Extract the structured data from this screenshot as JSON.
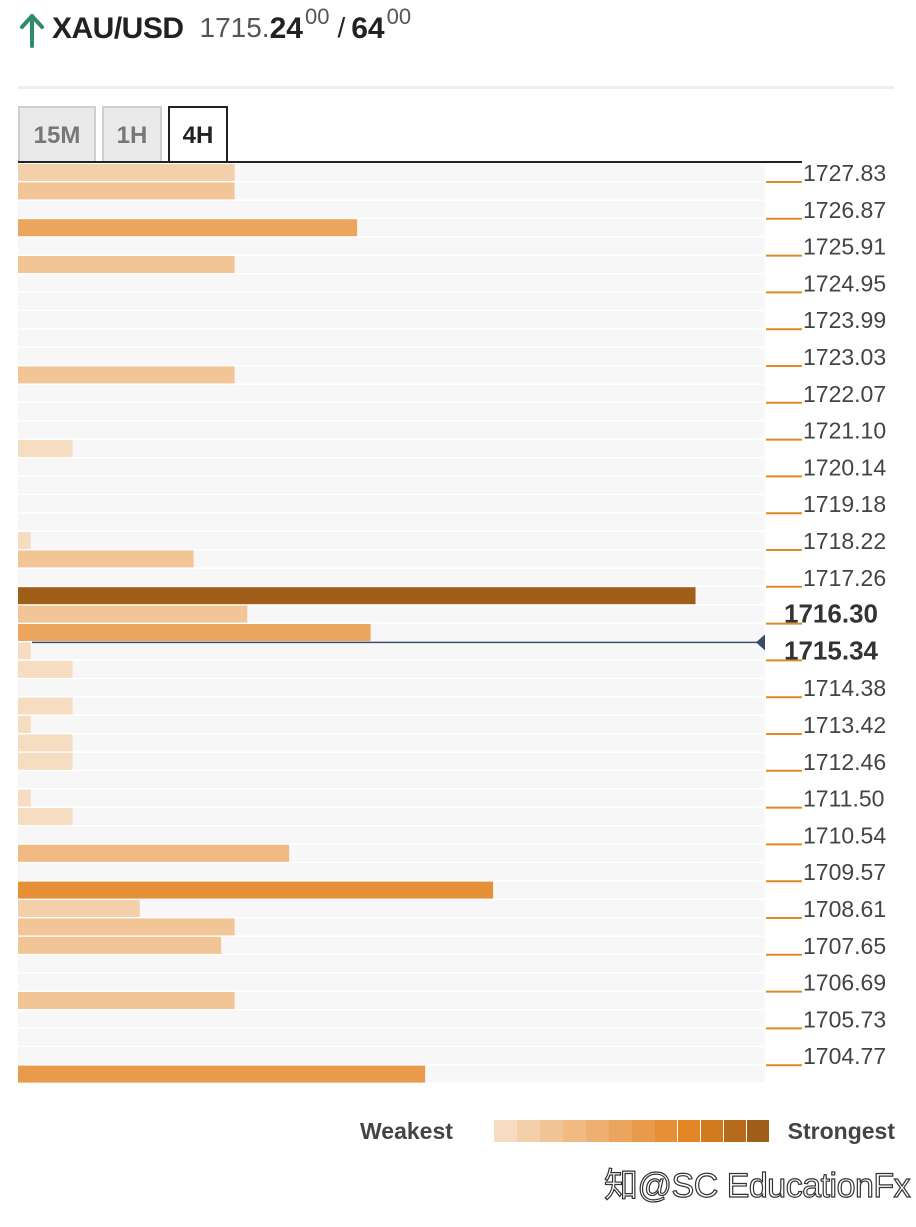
{
  "header": {
    "symbol": "XAU/USD",
    "price_prefix": "1715.",
    "bid_big": "24",
    "bid_sup": "00",
    "separator": "/",
    "ask_big": "64",
    "ask_sup": "00",
    "arrow_color": "#2e8b6e"
  },
  "tabs": [
    {
      "label": "15M",
      "active": false
    },
    {
      "label": "1H",
      "active": false
    },
    {
      "label": "4H",
      "active": true
    }
  ],
  "levels": [
    {
      "price": "1727.83",
      "strength": 3,
      "length": 0.29
    },
    {
      "price": "1726.87",
      "strength": 6,
      "length": 0.454
    },
    {
      "price": "1725.91",
      "strength": 3,
      "length": 0.29
    },
    {
      "price": "1724.95",
      "strength": 0,
      "length": 0
    },
    {
      "price": "1723.99",
      "strength": 0,
      "length": 0
    },
    {
      "price": "1723.03",
      "strength": 3,
      "length": 0.29
    },
    {
      "price": "1722.07",
      "strength": 0,
      "length": 0
    },
    {
      "price": "1721.10",
      "strength": 1,
      "length": 0.073
    },
    {
      "price": "1720.14",
      "strength": 0,
      "length": 0
    },
    {
      "price": "1719.18",
      "strength": 0,
      "length": 0
    },
    {
      "price": "1718.22",
      "strength": 3,
      "length": 0.235
    },
    {
      "price": "1717.26",
      "strength": 12,
      "length": 0.907
    },
    {
      "price": "1716.30",
      "strength": 6,
      "length": 0.472,
      "bold": true
    },
    {
      "price": "1715.34",
      "strength": 1,
      "length": 0.073,
      "bold": true,
      "current": true
    },
    {
      "price": "1714.38",
      "strength": 1,
      "length": 0.073
    },
    {
      "price": "1713.42",
      "strength": 1,
      "length": 0.073
    },
    {
      "price": "1712.46",
      "strength": 0,
      "length": 0
    },
    {
      "price": "1711.50",
      "strength": 1,
      "length": 0.073
    },
    {
      "price": "1710.54",
      "strength": 4,
      "length": 0.363
    },
    {
      "price": "1709.57",
      "strength": 8,
      "length": 0.636
    },
    {
      "price": "1708.61",
      "strength": 3,
      "length": 0.29
    },
    {
      "price": "1707.65",
      "strength": 0,
      "length": 0
    },
    {
      "price": "1706.69",
      "strength": 3,
      "length": 0.29
    },
    {
      "price": "1705.73",
      "strength": 0,
      "length": 0
    },
    {
      "price": "1704.77",
      "strength": 7,
      "length": 0.545
    }
  ],
  "extra_bars": [
    {
      "price": "1727.83",
      "strength": 2,
      "length": 0.29
    },
    {
      "price": "1718.22",
      "strength": 1,
      "length": 0.017
    },
    {
      "price": "1716.30",
      "strength": 3,
      "length": 0.307
    },
    {
      "price": "1715.34",
      "strength": 1,
      "length": 0.017
    },
    {
      "price": "1713.42",
      "strength": 1,
      "length": 0.017
    },
    {
      "price": "1712.46",
      "strength": 1,
      "length": 0.073
    },
    {
      "price": "1711.50",
      "strength": 1,
      "length": 0.017
    },
    {
      "price": "1708.61",
      "strength": 2,
      "length": 0.163
    },
    {
      "price": "1707.65",
      "strength": 3,
      "length": 0.272
    }
  ],
  "legend": {
    "weakest_label": "Weakest",
    "strongest_label": "Strongest",
    "colors": [
      "#f6dcc0",
      "#f3d0aa",
      "#f2c596",
      "#f0ba82",
      "#eeb070",
      "#eba55d",
      "#e99a4a",
      "#e68f37",
      "#e38523",
      "#d07a1e",
      "#b56b1b",
      "#a05f19"
    ]
  },
  "watermark": "知@SC EducationFx"
}
